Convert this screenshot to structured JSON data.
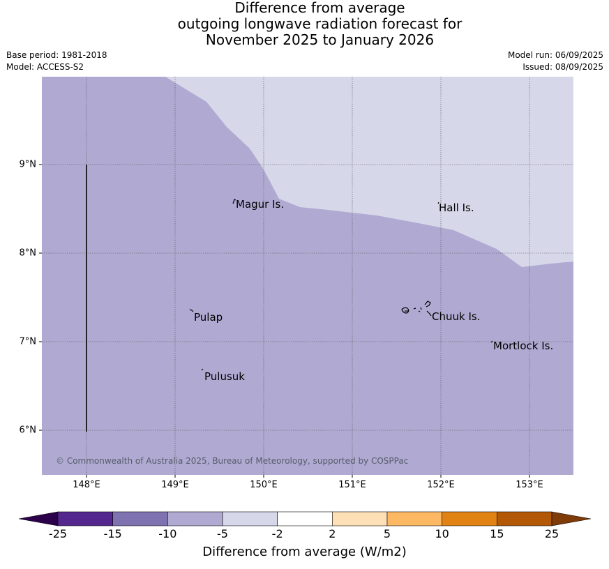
{
  "title": {
    "line1": "Difference from average",
    "line2": "outgoing longwave radiation forecast for",
    "line3": "November 2025 to January 2026"
  },
  "meta": {
    "base_period": "Base period: 1981-2018",
    "model": "Model: ACCESS-S2",
    "model_run": "Model run: 06/09/2025",
    "issued": "Issued: 08/09/2025"
  },
  "map": {
    "lon_ticks": [
      "148°E",
      "149°E",
      "150°E",
      "151°E",
      "152°E",
      "153°E"
    ],
    "lat_ticks": [
      "9°N",
      "8°N",
      "7°N",
      "6°N"
    ],
    "places": [
      {
        "name": "Magur Is."
      },
      {
        "name": "Hall Is."
      },
      {
        "name": "Pulap"
      },
      {
        "name": "Chuuk Is."
      },
      {
        "name": "Mortlock Is."
      },
      {
        "name": "Pulusuk"
      }
    ],
    "copyright": "© Commonwealth of Australia 2025, Bureau of Meteorology, supported by COSPPac",
    "region_colors": {
      "minus10_to_minus5": "#b0aad2",
      "minus5_to_minus2": "#d7d7ea"
    }
  },
  "colorbar": {
    "title": "Difference from average (W/m2)",
    "tick_labels": [
      "-25",
      "-15",
      "-10",
      "-5",
      "-2",
      "2",
      "5",
      "10",
      "15",
      "25"
    ],
    "bins": [
      {
        "color": "#54278f"
      },
      {
        "color": "#7f72b0"
      },
      {
        "color": "#b0aad2"
      },
      {
        "color": "#d7d7ea"
      },
      {
        "color": "#ffffff"
      },
      {
        "color": "#fee0b6"
      },
      {
        "color": "#fdb863"
      },
      {
        "color": "#e08214"
      },
      {
        "color": "#b35806"
      }
    ],
    "low_extend_color": "#2d004b",
    "high_extend_color": "#7f3b08"
  }
}
